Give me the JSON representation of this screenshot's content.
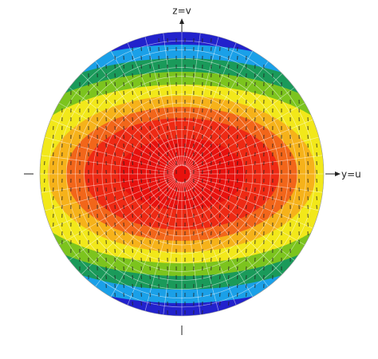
{
  "axes": {
    "vertical_label": "z=v",
    "horizontal_label": "y=u"
  }
}
